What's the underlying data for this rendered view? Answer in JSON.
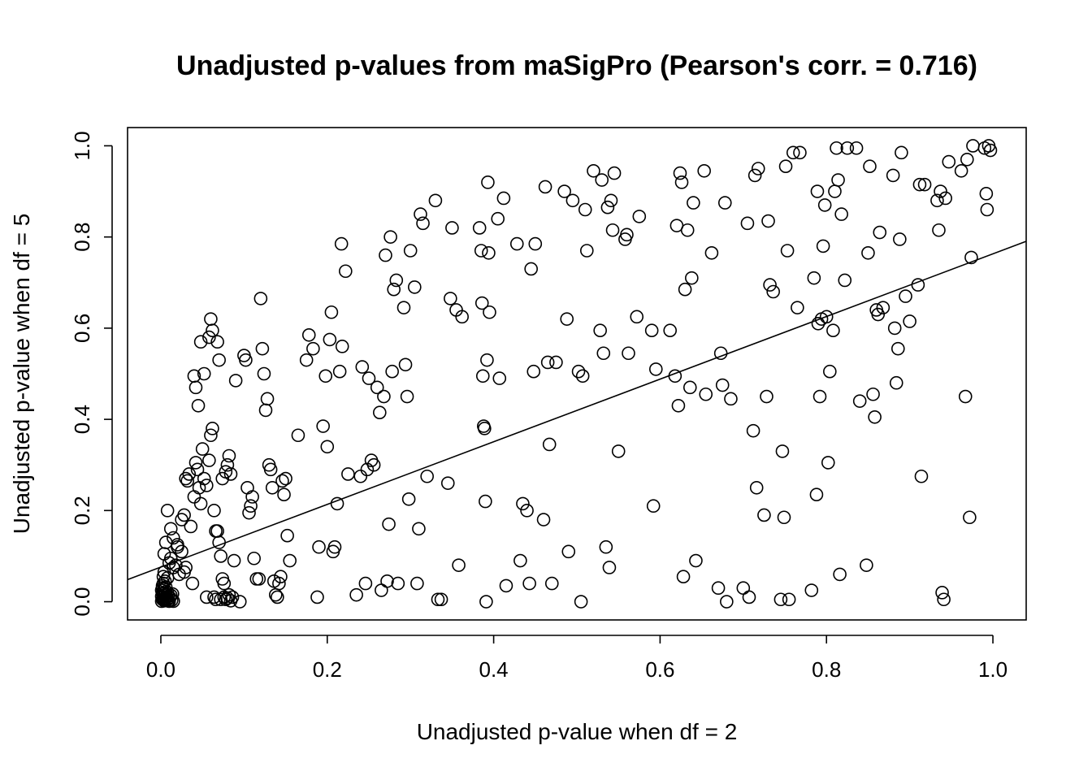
{
  "chart_data": {
    "type": "scatter",
    "title": "Unadjusted p-values from maSigPro (Pearson's corr. = 0.716)",
    "xlabel": "Unadjusted p-value when df = 2",
    "ylabel": "Unadjusted p-value when df = 5",
    "xlim": [
      -0.04,
      1.04
    ],
    "ylim": [
      -0.04,
      1.04
    ],
    "x_ticks": [
      "0.0",
      "0.2",
      "0.4",
      "0.6",
      "0.8",
      "1.0"
    ],
    "y_ticks": [
      "0.0",
      "0.2",
      "0.4",
      "0.6",
      "0.8",
      "1.0"
    ],
    "grid": false,
    "fit_line": {
      "intercept": 0.076,
      "slope": 0.687
    },
    "points": [
      [
        0.001,
        0.001
      ],
      [
        0.002,
        0.005
      ],
      [
        0.003,
        0.01
      ],
      [
        0.004,
        0.002
      ],
      [
        0.005,
        0.015
      ],
      [
        0.006,
        0.008
      ],
      [
        0.007,
        0.003
      ],
      [
        0.008,
        0.02
      ],
      [
        0.009,
        0.012
      ],
      [
        0.01,
        0.001
      ],
      [
        0.001,
        0.025
      ],
      [
        0.002,
        0.03
      ],
      [
        0.003,
        0.018
      ],
      [
        0.004,
        0.007
      ],
      [
        0.005,
        0.004
      ],
      [
        0.006,
        0.022
      ],
      [
        0.007,
        0.011
      ],
      [
        0.008,
        0.006
      ],
      [
        0.009,
        0.002
      ],
      [
        0.011,
        0.009
      ],
      [
        0.012,
        0.014
      ],
      [
        0.013,
        0.003
      ],
      [
        0.014,
        0.017
      ],
      [
        0.015,
        0.001
      ],
      [
        0.002,
        0.035
      ],
      [
        0.003,
        0.04
      ],
      [
        0.004,
        0.028
      ],
      [
        0.006,
        0.032
      ],
      [
        0.001,
        0.012
      ],
      [
        0.002,
        0.018
      ],
      [
        0.003,
        0.055
      ],
      [
        0.004,
        0.065
      ],
      [
        0.005,
        0.045
      ],
      [
        0.008,
        0.052
      ],
      [
        0.01,
        0.085
      ],
      [
        0.012,
        0.095
      ],
      [
        0.015,
        0.075
      ],
      [
        0.018,
        0.08
      ],
      [
        0.02,
        0.12
      ],
      [
        0.022,
        0.06
      ],
      [
        0.025,
        0.11
      ],
      [
        0.028,
        0.065
      ],
      [
        0.03,
        0.075
      ],
      [
        0.004,
        0.105
      ],
      [
        0.006,
        0.13
      ],
      [
        0.008,
        0.2
      ],
      [
        0.012,
        0.16
      ],
      [
        0.015,
        0.14
      ],
      [
        0.02,
        0.125
      ],
      [
        0.025,
        0.18
      ],
      [
        0.028,
        0.19
      ],
      [
        0.03,
        0.27
      ],
      [
        0.032,
        0.265
      ],
      [
        0.034,
        0.28
      ],
      [
        0.036,
        0.165
      ],
      [
        0.038,
        0.04
      ],
      [
        0.04,
        0.23
      ],
      [
        0.042,
        0.305
      ],
      [
        0.044,
        0.29
      ],
      [
        0.046,
        0.25
      ],
      [
        0.048,
        0.215
      ],
      [
        0.05,
        0.335
      ],
      [
        0.052,
        0.27
      ],
      [
        0.055,
        0.255
      ],
      [
        0.058,
        0.31
      ],
      [
        0.06,
        0.365
      ],
      [
        0.062,
        0.38
      ],
      [
        0.064,
        0.2
      ],
      [
        0.066,
        0.155
      ],
      [
        0.068,
        0.155
      ],
      [
        0.07,
        0.13
      ],
      [
        0.072,
        0.1
      ],
      [
        0.074,
        0.05
      ],
      [
        0.076,
        0.04
      ],
      [
        0.078,
        0.285
      ],
      [
        0.08,
        0.3
      ],
      [
        0.082,
        0.32
      ],
      [
        0.084,
        0.28
      ],
      [
        0.086,
        0.01
      ],
      [
        0.088,
        0.09
      ],
      [
        0.04,
        0.495
      ],
      [
        0.042,
        0.47
      ],
      [
        0.045,
        0.43
      ],
      [
        0.048,
        0.57
      ],
      [
        0.052,
        0.5
      ],
      [
        0.055,
        0.01
      ],
      [
        0.058,
        0.58
      ],
      [
        0.06,
        0.62
      ],
      [
        0.062,
        0.595
      ],
      [
        0.064,
        0.01
      ],
      [
        0.066,
        0.005
      ],
      [
        0.068,
        0.57
      ],
      [
        0.07,
        0.53
      ],
      [
        0.072,
        0.005
      ],
      [
        0.074,
        0.27
      ],
      [
        0.076,
        0.01
      ],
      [
        0.078,
        0.005
      ],
      [
        0.08,
        0.008
      ],
      [
        0.082,
        0.015
      ],
      [
        0.084,
        0.002
      ],
      [
        0.09,
        0.485
      ],
      [
        0.095,
        0.0
      ],
      [
        0.1,
        0.54
      ],
      [
        0.102,
        0.53
      ],
      [
        0.104,
        0.25
      ],
      [
        0.106,
        0.195
      ],
      [
        0.108,
        0.21
      ],
      [
        0.11,
        0.23
      ],
      [
        0.112,
        0.095
      ],
      [
        0.115,
        0.05
      ],
      [
        0.118,
        0.05
      ],
      [
        0.12,
        0.665
      ],
      [
        0.122,
        0.555
      ],
      [
        0.124,
        0.5
      ],
      [
        0.126,
        0.42
      ],
      [
        0.128,
        0.445
      ],
      [
        0.13,
        0.3
      ],
      [
        0.132,
        0.29
      ],
      [
        0.134,
        0.25
      ],
      [
        0.136,
        0.045
      ],
      [
        0.138,
        0.015
      ],
      [
        0.14,
        0.01
      ],
      [
        0.142,
        0.04
      ],
      [
        0.144,
        0.055
      ],
      [
        0.146,
        0.265
      ],
      [
        0.148,
        0.235
      ],
      [
        0.15,
        0.27
      ],
      [
        0.152,
        0.145
      ],
      [
        0.155,
        0.09
      ],
      [
        0.165,
        0.365
      ],
      [
        0.175,
        0.53
      ],
      [
        0.178,
        0.585
      ],
      [
        0.183,
        0.555
      ],
      [
        0.188,
        0.01
      ],
      [
        0.19,
        0.12
      ],
      [
        0.195,
        0.385
      ],
      [
        0.198,
        0.495
      ],
      [
        0.2,
        0.34
      ],
      [
        0.203,
        0.575
      ],
      [
        0.205,
        0.635
      ],
      [
        0.207,
        0.11
      ],
      [
        0.209,
        0.12
      ],
      [
        0.212,
        0.215
      ],
      [
        0.215,
        0.505
      ],
      [
        0.217,
        0.785
      ],
      [
        0.218,
        0.56
      ],
      [
        0.222,
        0.725
      ],
      [
        0.225,
        0.28
      ],
      [
        0.235,
        0.015
      ],
      [
        0.24,
        0.275
      ],
      [
        0.242,
        0.515
      ],
      [
        0.246,
        0.04
      ],
      [
        0.248,
        0.29
      ],
      [
        0.25,
        0.49
      ],
      [
        0.253,
        0.31
      ],
      [
        0.256,
        0.3
      ],
      [
        0.26,
        0.47
      ],
      [
        0.263,
        0.415
      ],
      [
        0.265,
        0.025
      ],
      [
        0.268,
        0.45
      ],
      [
        0.27,
        0.76
      ],
      [
        0.272,
        0.045
      ],
      [
        0.274,
        0.17
      ],
      [
        0.276,
        0.8
      ],
      [
        0.278,
        0.505
      ],
      [
        0.28,
        0.685
      ],
      [
        0.283,
        0.705
      ],
      [
        0.285,
        0.04
      ],
      [
        0.292,
        0.645
      ],
      [
        0.294,
        0.52
      ],
      [
        0.296,
        0.45
      ],
      [
        0.298,
        0.225
      ],
      [
        0.3,
        0.77
      ],
      [
        0.305,
        0.69
      ],
      [
        0.308,
        0.04
      ],
      [
        0.31,
        0.16
      ],
      [
        0.312,
        0.85
      ],
      [
        0.315,
        0.83
      ],
      [
        0.32,
        0.275
      ],
      [
        0.33,
        0.88
      ],
      [
        0.333,
        0.005
      ],
      [
        0.337,
        0.005
      ],
      [
        0.345,
        0.26
      ],
      [
        0.348,
        0.665
      ],
      [
        0.35,
        0.82
      ],
      [
        0.355,
        0.64
      ],
      [
        0.358,
        0.08
      ],
      [
        0.362,
        0.625
      ],
      [
        0.383,
        0.82
      ],
      [
        0.385,
        0.77
      ],
      [
        0.386,
        0.655
      ],
      [
        0.387,
        0.495
      ],
      [
        0.388,
        0.385
      ],
      [
        0.389,
        0.38
      ],
      [
        0.39,
        0.22
      ],
      [
        0.391,
        0.0
      ],
      [
        0.392,
        0.53
      ],
      [
        0.393,
        0.92
      ],
      [
        0.394,
        0.765
      ],
      [
        0.395,
        0.635
      ],
      [
        0.405,
        0.84
      ],
      [
        0.407,
        0.49
      ],
      [
        0.412,
        0.885
      ],
      [
        0.415,
        0.035
      ],
      [
        0.428,
        0.785
      ],
      [
        0.432,
        0.09
      ],
      [
        0.435,
        0.215
      ],
      [
        0.44,
        0.2
      ],
      [
        0.443,
        0.04
      ],
      [
        0.445,
        0.73
      ],
      [
        0.448,
        0.505
      ],
      [
        0.45,
        0.785
      ],
      [
        0.46,
        0.18
      ],
      [
        0.462,
        0.91
      ],
      [
        0.465,
        0.525
      ],
      [
        0.467,
        0.345
      ],
      [
        0.47,
        0.04
      ],
      [
        0.475,
        0.525
      ],
      [
        0.485,
        0.9
      ],
      [
        0.488,
        0.62
      ],
      [
        0.49,
        0.11
      ],
      [
        0.495,
        0.88
      ],
      [
        0.502,
        0.505
      ],
      [
        0.505,
        0.0
      ],
      [
        0.507,
        0.495
      ],
      [
        0.51,
        0.86
      ],
      [
        0.512,
        0.77
      ],
      [
        0.52,
        0.945
      ],
      [
        0.528,
        0.595
      ],
      [
        0.53,
        0.925
      ],
      [
        0.532,
        0.545
      ],
      [
        0.535,
        0.12
      ],
      [
        0.537,
        0.865
      ],
      [
        0.539,
        0.075
      ],
      [
        0.541,
        0.88
      ],
      [
        0.543,
        0.815
      ],
      [
        0.545,
        0.94
      ],
      [
        0.55,
        0.33
      ],
      [
        0.558,
        0.795
      ],
      [
        0.56,
        0.805
      ],
      [
        0.562,
        0.545
      ],
      [
        0.572,
        0.625
      ],
      [
        0.575,
        0.845
      ],
      [
        0.59,
        0.595
      ],
      [
        0.592,
        0.21
      ],
      [
        0.595,
        0.51
      ],
      [
        0.612,
        0.595
      ],
      [
        0.618,
        0.495
      ],
      [
        0.62,
        0.825
      ],
      [
        0.622,
        0.43
      ],
      [
        0.624,
        0.94
      ],
      [
        0.626,
        0.92
      ],
      [
        0.628,
        0.055
      ],
      [
        0.63,
        0.685
      ],
      [
        0.633,
        0.815
      ],
      [
        0.636,
        0.47
      ],
      [
        0.638,
        0.71
      ],
      [
        0.64,
        0.875
      ],
      [
        0.643,
        0.09
      ],
      [
        0.653,
        0.945
      ],
      [
        0.655,
        0.455
      ],
      [
        0.662,
        0.765
      ],
      [
        0.67,
        0.03
      ],
      [
        0.673,
        0.545
      ],
      [
        0.675,
        0.475
      ],
      [
        0.678,
        0.875
      ],
      [
        0.68,
        0.0
      ],
      [
        0.685,
        0.445
      ],
      [
        0.7,
        0.03
      ],
      [
        0.705,
        0.83
      ],
      [
        0.707,
        0.01
      ],
      [
        0.712,
        0.375
      ],
      [
        0.714,
        0.935
      ],
      [
        0.716,
        0.25
      ],
      [
        0.718,
        0.95
      ],
      [
        0.725,
        0.19
      ],
      [
        0.728,
        0.45
      ],
      [
        0.73,
        0.835
      ],
      [
        0.732,
        0.695
      ],
      [
        0.736,
        0.68
      ],
      [
        0.745,
        0.005
      ],
      [
        0.747,
        0.33
      ],
      [
        0.749,
        0.185
      ],
      [
        0.751,
        0.955
      ],
      [
        0.753,
        0.77
      ],
      [
        0.755,
        0.005
      ],
      [
        0.76,
        0.985
      ],
      [
        0.765,
        0.645
      ],
      [
        0.768,
        0.985
      ],
      [
        0.782,
        0.025
      ],
      [
        0.785,
        0.71
      ],
      [
        0.788,
        0.235
      ],
      [
        0.789,
        0.9
      ],
      [
        0.79,
        0.61
      ],
      [
        0.792,
        0.45
      ],
      [
        0.794,
        0.62
      ],
      [
        0.796,
        0.78
      ],
      [
        0.798,
        0.87
      ],
      [
        0.8,
        0.625
      ],
      [
        0.802,
        0.305
      ],
      [
        0.804,
        0.505
      ],
      [
        0.808,
        0.595
      ],
      [
        0.81,
        0.9
      ],
      [
        0.812,
        0.995
      ],
      [
        0.814,
        0.925
      ],
      [
        0.816,
        0.06
      ],
      [
        0.818,
        0.85
      ],
      [
        0.822,
        0.705
      ],
      [
        0.825,
        0.995
      ],
      [
        0.836,
        0.995
      ],
      [
        0.84,
        0.44
      ],
      [
        0.848,
        0.08
      ],
      [
        0.85,
        0.765
      ],
      [
        0.852,
        0.955
      ],
      [
        0.856,
        0.455
      ],
      [
        0.858,
        0.405
      ],
      [
        0.86,
        0.64
      ],
      [
        0.862,
        0.63
      ],
      [
        0.864,
        0.81
      ],
      [
        0.868,
        0.645
      ],
      [
        0.88,
        0.935
      ],
      [
        0.882,
        0.6
      ],
      [
        0.884,
        0.48
      ],
      [
        0.886,
        0.555
      ],
      [
        0.888,
        0.795
      ],
      [
        0.89,
        0.985
      ],
      [
        0.895,
        0.67
      ],
      [
        0.9,
        0.615
      ],
      [
        0.91,
        0.695
      ],
      [
        0.912,
        0.915
      ],
      [
        0.914,
        0.275
      ],
      [
        0.918,
        0.915
      ],
      [
        0.933,
        0.88
      ],
      [
        0.935,
        0.815
      ],
      [
        0.937,
        0.9
      ],
      [
        0.939,
        0.02
      ],
      [
        0.941,
        0.005
      ],
      [
        0.943,
        0.885
      ],
      [
        0.947,
        0.965
      ],
      [
        0.962,
        0.945
      ],
      [
        0.967,
        0.45
      ],
      [
        0.969,
        0.97
      ],
      [
        0.972,
        0.185
      ],
      [
        0.974,
        0.755
      ],
      [
        0.976,
        1.0
      ],
      [
        0.99,
        0.995
      ],
      [
        0.992,
        0.895
      ],
      [
        0.993,
        0.86
      ],
      [
        0.995,
        1.0
      ],
      [
        0.997,
        0.99
      ]
    ]
  }
}
